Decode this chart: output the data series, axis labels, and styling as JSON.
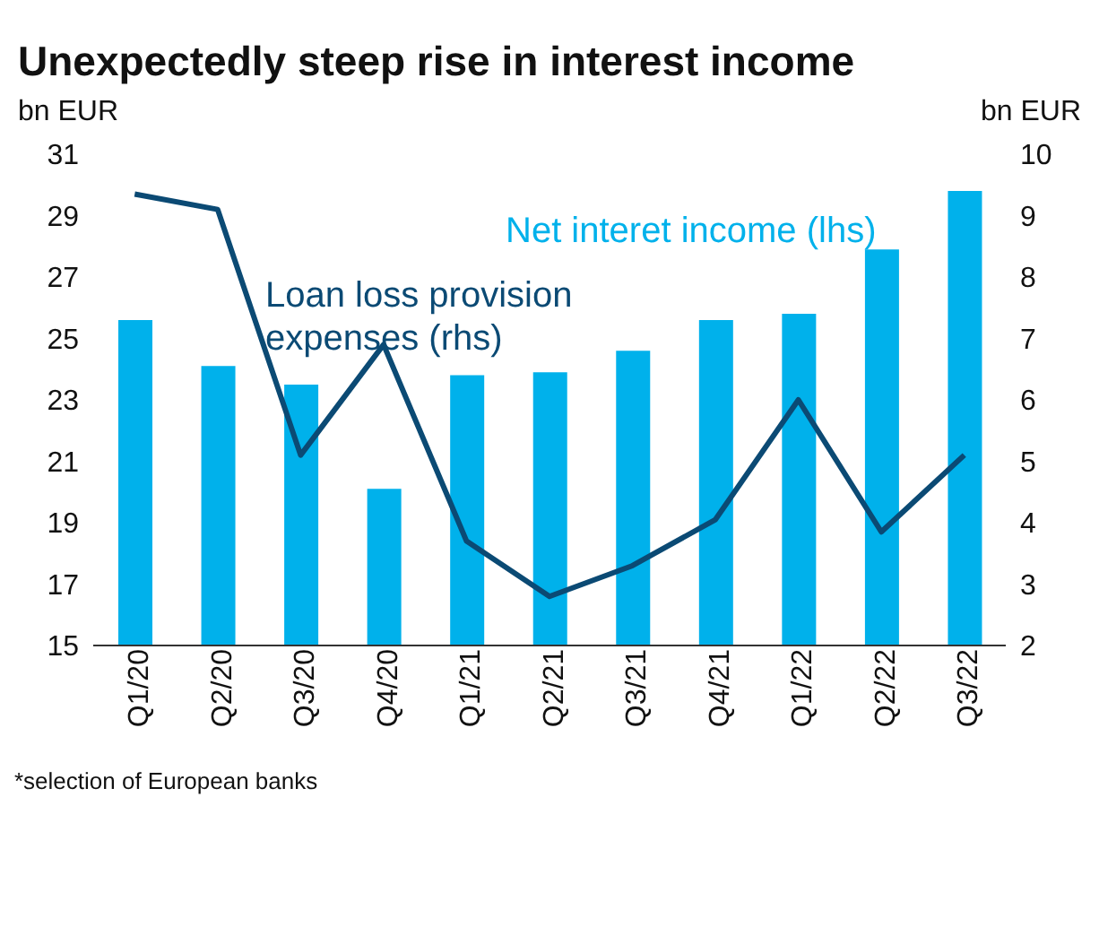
{
  "chart_data": {
    "type": "bar",
    "title": "Unexpectedly steep rise in interest income",
    "ylabel": "bn EUR",
    "y2label": "bn EUR",
    "categories": [
      "Q1/20",
      "Q2/20",
      "Q3/20",
      "Q4/20",
      "Q1/21",
      "Q2/21",
      "Q3/21",
      "Q4/21",
      "Q1/22",
      "Q2/22",
      "Q3/22"
    ],
    "series": [
      {
        "name": "Net interet income (lhs)",
        "color": "#00b1eb",
        "values": [
          25.6,
          24.1,
          23.5,
          20.1,
          23.8,
          23.9,
          24.6,
          25.6,
          25.8,
          27.9,
          29.8
        ]
      },
      {
        "name": "Loan loss provision expenses (rhs)",
        "type": "line",
        "axis": "y2",
        "color": "#0b4a74",
        "values": [
          9.35,
          9.1,
          5.1,
          6.9,
          3.7,
          2.8,
          3.3,
          4.05,
          6.0,
          3.85,
          5.1
        ]
      }
    ],
    "ylim": [
      15,
      31
    ],
    "yticks": [
      15,
      17,
      19,
      21,
      23,
      25,
      27,
      29,
      31
    ],
    "y2lim": [
      2,
      10
    ],
    "y2ticks": [
      2,
      3,
      4,
      5,
      6,
      7,
      8,
      9,
      10
    ],
    "grid": false,
    "legend": false,
    "marker": "none",
    "line_style": "solid",
    "annotations": [
      "*selection of European banks"
    ]
  }
}
